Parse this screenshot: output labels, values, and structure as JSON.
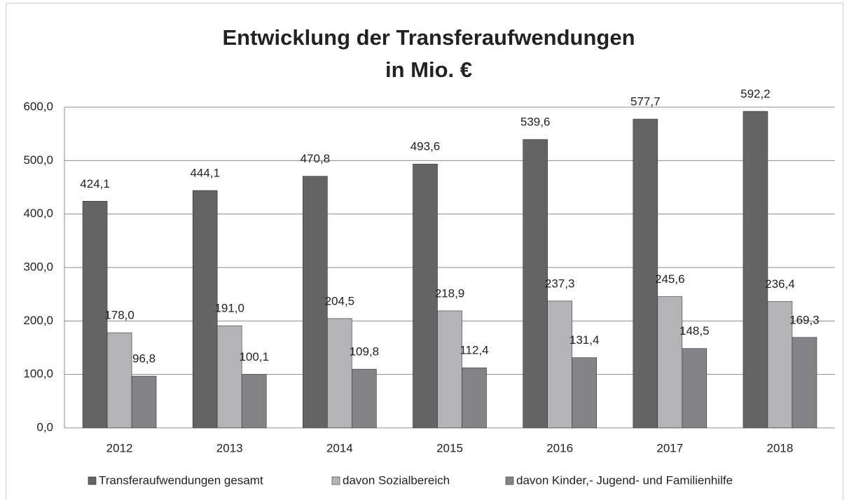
{
  "chart_data": {
    "type": "bar",
    "title": [
      "Entwicklung der Transferaufwendungen",
      "in Mio. €"
    ],
    "categories": [
      "2012",
      "2013",
      "2014",
      "2015",
      "2016",
      "2017",
      "2018"
    ],
    "series": [
      {
        "name": "Transferaufwendungen gesamt",
        "color": "#646464",
        "values": [
          424.1,
          444.1,
          470.8,
          493.6,
          539.6,
          577.7,
          592.2
        ],
        "value_labels": [
          "424,1",
          "444,1",
          "470,8",
          "493,6",
          "539,6",
          "577,7",
          "592,2"
        ]
      },
      {
        "name": "davon Sozialbereich",
        "color": "#b4b4b6",
        "values": [
          178.0,
          191.0,
          204.5,
          218.9,
          237.3,
          245.6,
          236.4
        ],
        "value_labels": [
          "178,0",
          "191,0",
          "204,5",
          "218,9",
          "237,3",
          "245,6",
          "236,4"
        ]
      },
      {
        "name": "davon Kinder,- Jugend- und Familienhilfe",
        "color": "#848486",
        "values": [
          96.8,
          100.1,
          109.8,
          112.4,
          131.4,
          148.5,
          169.3
        ],
        "value_labels": [
          "96,8",
          "100,1",
          "109,8",
          "112,4",
          "131,4",
          "148,5",
          "169,3"
        ]
      }
    ],
    "ylim": [
      0,
      600
    ],
    "yticks": [
      {
        "value": 0,
        "label": "0,0"
      },
      {
        "value": 100,
        "label": "100,0"
      },
      {
        "value": 200,
        "label": "200,0"
      },
      {
        "value": 300,
        "label": "300,0"
      },
      {
        "value": 400,
        "label": "400,0"
      },
      {
        "value": 500,
        "label": "500,0"
      },
      {
        "value": 600,
        "label": "600,0"
      }
    ],
    "grid": true,
    "legend": "bottom"
  }
}
